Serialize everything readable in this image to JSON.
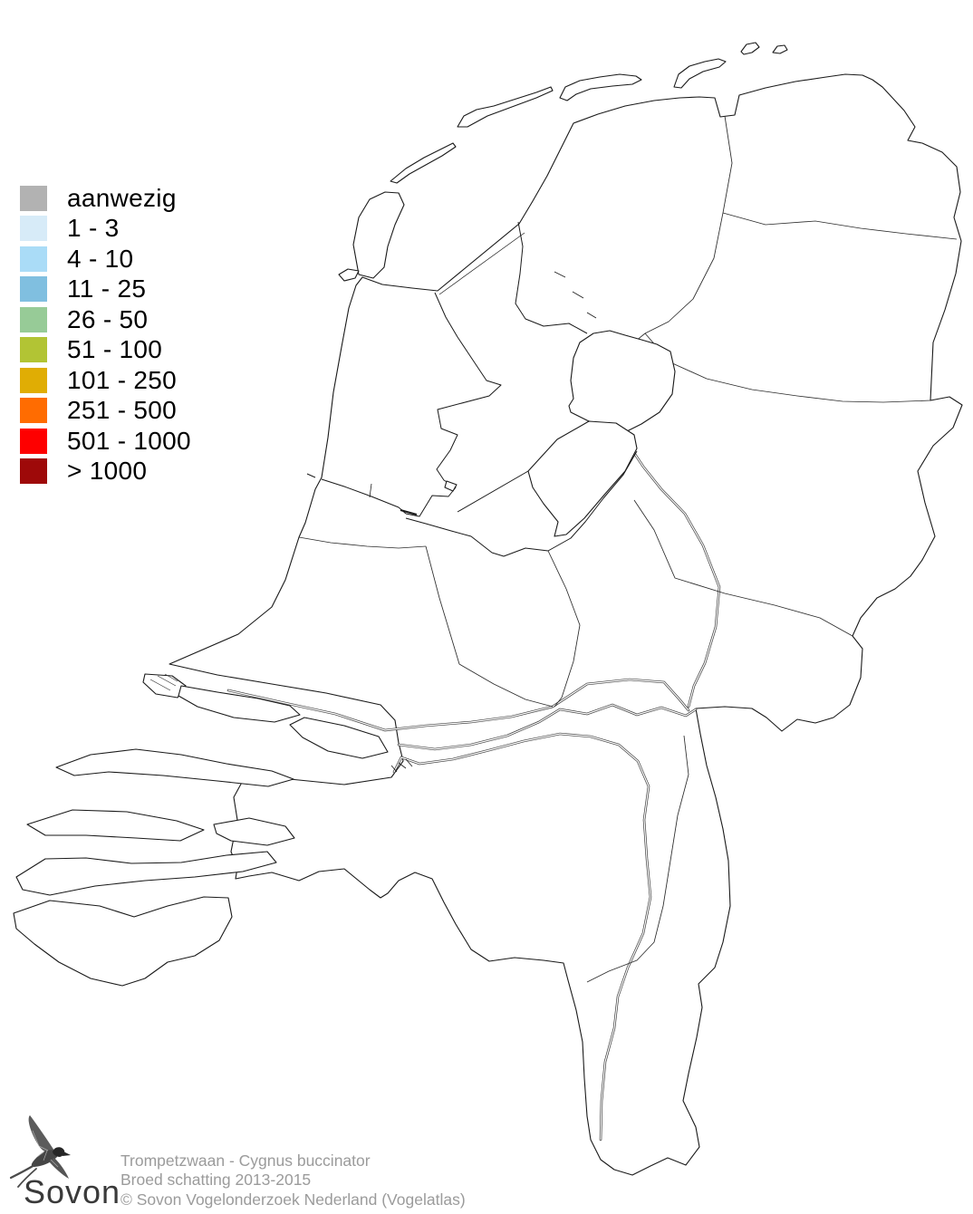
{
  "legend": {
    "items": [
      {
        "label": "aanwezig",
        "color": "#b2b2b2"
      },
      {
        "label": "1 - 3",
        "color": "#d7ebf8"
      },
      {
        "label": "4 - 10",
        "color": "#aadcf7"
      },
      {
        "label": "11 - 25",
        "color": "#80bfe0"
      },
      {
        "label": "26 - 50",
        "color": "#97cb97"
      },
      {
        "label": "51 - 100",
        "color": "#b2c434"
      },
      {
        "label": "101 - 250",
        "color": "#e0ad04"
      },
      {
        "label": "251 - 500",
        "color": "#ff6c01"
      },
      {
        "label": "501 - 1000",
        "color": "#fe0000"
      },
      {
        "label": "> 1000",
        "color": "#9e0909"
      }
    ]
  },
  "footer": {
    "logo_text": "Sovon",
    "line1": "Trompetzwaan - Cygnus buccinator",
    "line2": "Broed schatting 2013-2015",
    "line3": "© Sovon Vogelonderzoek Nederland (Vogelatlas)"
  }
}
